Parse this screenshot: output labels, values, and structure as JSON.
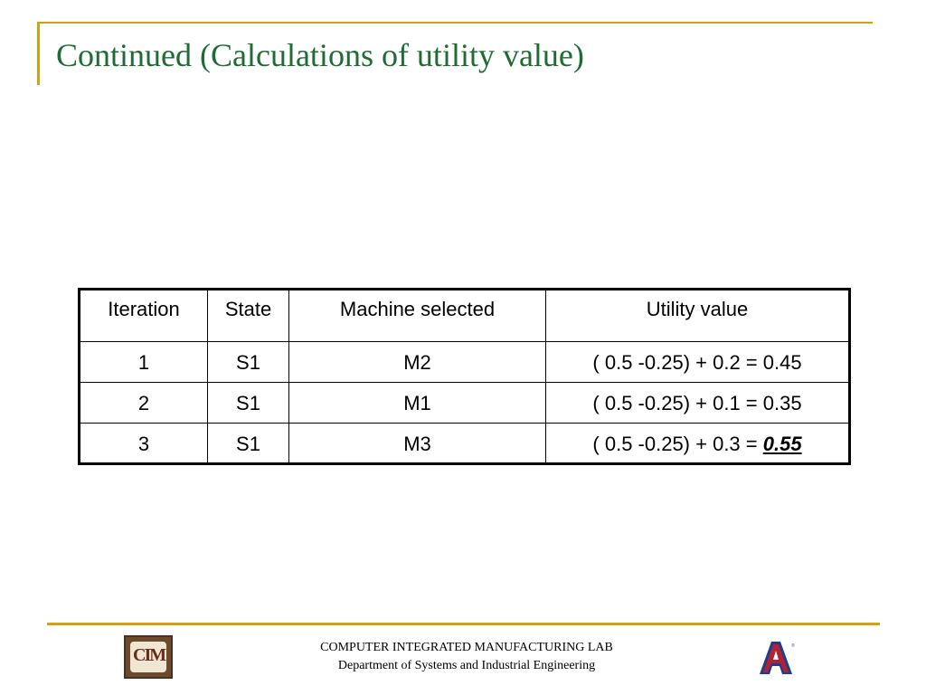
{
  "slide": {
    "title": "Continued (Calculations of utility value)"
  },
  "table": {
    "headers": [
      "Iteration",
      "State",
      "Machine selected",
      "Utility value"
    ],
    "rows": [
      {
        "iteration": "1",
        "state": "S1",
        "machine": "M2",
        "utility": "( 0.5 -0.25) + 0.2 = 0.45"
      },
      {
        "iteration": "2",
        "state": "S1",
        "machine": "M1",
        "utility": "( 0.5 -0.25) + 0.1 = 0.35"
      },
      {
        "iteration": "3",
        "state": "S1",
        "machine": "M3",
        "utility_prefix": "( 0.5 -0.25) + 0.3 = ",
        "utility_highlight": "0.55"
      }
    ]
  },
  "footer": {
    "line1": "COMPUTER INTEGRATED MANUFACTURING LAB",
    "line2": "Department of Systems and Industrial Engineering",
    "logo_left_text": "CIM",
    "logo_right_text": "A",
    "logo_right_mark": "®"
  },
  "colors": {
    "title": "#1e6b33",
    "accent_line": "#d4a017",
    "university_blue": "#1a3f8f",
    "university_red": "#b22234"
  },
  "icons": {
    "left_logo": "cim-lab-logo",
    "right_logo": "university-a-logo"
  }
}
